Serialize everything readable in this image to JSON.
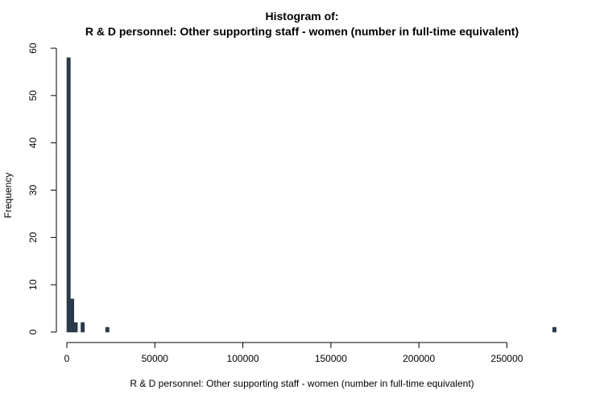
{
  "chart_data": {
    "type": "bar",
    "title_lines": [
      "Histogram of:",
      "R & D personnel: Other supporting staff - women (number in full-time equivalent)"
    ],
    "xlabel": "R & D personnel: Other supporting staff - women (number in full-time equivalent)",
    "ylabel": "Frequency",
    "bin_width": 2000,
    "xlim": [
      0,
      280000
    ],
    "ylim": [
      0,
      60
    ],
    "x_ticks": [
      0,
      50000,
      100000,
      150000,
      200000,
      250000
    ],
    "y_ticks": [
      0,
      10,
      20,
      30,
      40,
      50,
      60
    ],
    "bars": [
      {
        "x": 0,
        "count": 58
      },
      {
        "x": 2000,
        "count": 7
      },
      {
        "x": 4000,
        "count": 2
      },
      {
        "x": 8000,
        "count": 2
      },
      {
        "x": 22000,
        "count": 1
      },
      {
        "x": 276000,
        "count": 1
      }
    ],
    "bar_color": "#2b3a4a",
    "grid": false
  }
}
